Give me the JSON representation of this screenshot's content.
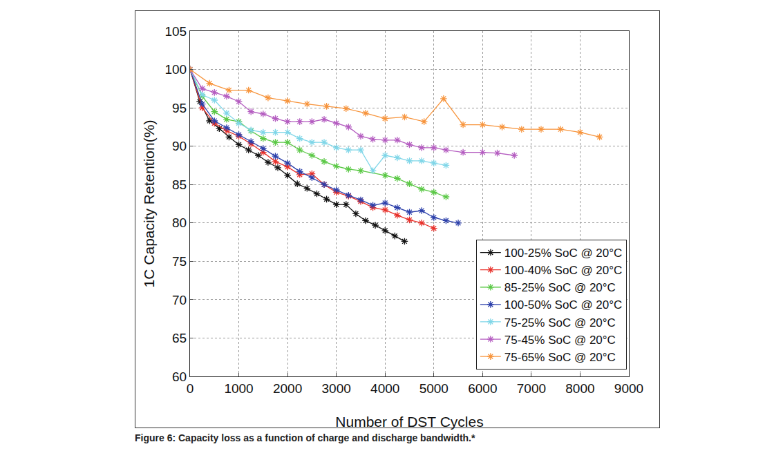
{
  "chart_data": {
    "type": "line",
    "caption": "Figure 6: Capacity loss as a function of charge and discharge bandwidth.*",
    "x_label": "Number of DST Cycles",
    "y_label": "1C Capacity Retention(%)",
    "xlim": [
      0,
      9000
    ],
    "xticks": [
      0,
      1000,
      2000,
      3000,
      4000,
      5000,
      6000,
      7000,
      8000,
      9000
    ],
    "ylim": [
      60,
      105
    ],
    "yticks": [
      60,
      65,
      70,
      75,
      80,
      85,
      90,
      95,
      100,
      105
    ],
    "grid": true,
    "legend": "lower right",
    "marker": "asterisk",
    "series": [
      {
        "name": "100-25% SoC @ 20°C",
        "color": "#111111",
        "x": [
          0,
          200,
          400,
          600,
          800,
          1000,
          1200,
          1400,
          1600,
          1800,
          2000,
          2200,
          2400,
          2600,
          2800,
          3000,
          3200,
          3400,
          3600,
          3800,
          4000,
          4200,
          4400
        ],
        "values": [
          100,
          95.8,
          93.3,
          92.3,
          91.2,
          90.2,
          89.5,
          88.8,
          87.9,
          87.2,
          86.2,
          85.1,
          84.5,
          83.8,
          83.1,
          82.4,
          82.4,
          81.2,
          80.3,
          79.7,
          79,
          78.3,
          77.6
        ]
      },
      {
        "name": "100-40% SoC @ 20°C",
        "color": "#e8302a",
        "x": [
          0,
          250,
          500,
          750,
          1000,
          1250,
          1500,
          1750,
          2000,
          2250,
          2500,
          2750,
          3000,
          3250,
          3500,
          3750,
          4000,
          4250,
          4500,
          4750,
          5000
        ],
        "values": [
          100,
          95,
          93,
          92,
          91.3,
          90.3,
          89.2,
          88,
          87.3,
          86.3,
          86.4,
          85,
          84,
          83.5,
          82.8,
          82,
          81.7,
          81,
          80.4,
          80,
          79.3
        ]
      },
      {
        "name": "85-25% SoC @ 20°C",
        "color": "#5ac845",
        "x": [
          0,
          250,
          500,
          750,
          1000,
          1250,
          1500,
          1750,
          2000,
          2250,
          2500,
          2750,
          3000,
          3250,
          3500,
          4000,
          4250,
          4500,
          4750,
          5000,
          5250
        ],
        "values": [
          100,
          96.5,
          94.5,
          93.5,
          93.2,
          92,
          91,
          90.5,
          90.5,
          89.5,
          88.8,
          88,
          87.4,
          87,
          86.8,
          86.2,
          85.8,
          85.1,
          84.4,
          84,
          83.4
        ]
      },
      {
        "name": "100-50% SoC @ 20°C",
        "color": "#2b3faa",
        "x": [
          0,
          250,
          500,
          750,
          1000,
          1250,
          1500,
          1750,
          2000,
          2250,
          2500,
          2750,
          3000,
          3250,
          3500,
          3750,
          4000,
          4250,
          4500,
          4750,
          5000,
          5250,
          5500
        ],
        "values": [
          100,
          95.5,
          93.3,
          92.4,
          91.5,
          90.6,
          89.7,
          88.7,
          87.8,
          86.7,
          85.9,
          85,
          84.3,
          83.6,
          83,
          82.3,
          82.6,
          82,
          81.4,
          81.6,
          80.7,
          80.3,
          80
        ]
      },
      {
        "name": "75-25% SoC @ 20°C",
        "color": "#7fd6e8",
        "x": [
          0,
          250,
          500,
          750,
          1000,
          1250,
          1500,
          1750,
          2000,
          2250,
          2500,
          2750,
          3000,
          3250,
          3500,
          3750,
          4000,
          4250,
          4500,
          4750,
          5000,
          5250
        ],
        "values": [
          100,
          96.7,
          96,
          94.3,
          93,
          92.1,
          91.8,
          91.8,
          91.8,
          91,
          90.5,
          90.5,
          89.8,
          89.5,
          89.5,
          86.8,
          88.8,
          88.5,
          88.1,
          88.1,
          87.8,
          87.5
        ]
      },
      {
        "name": "75-45% SoC @ 20°C",
        "color": "#b45cc0",
        "x": [
          0,
          250,
          500,
          750,
          1000,
          1250,
          1500,
          1750,
          2000,
          2250,
          2500,
          2750,
          3000,
          3250,
          3500,
          3750,
          4000,
          4250,
          4500,
          4750,
          5000,
          5250,
          5600,
          6000,
          6300,
          6650
        ],
        "values": [
          100,
          97.5,
          97,
          96.5,
          95.8,
          94.5,
          94.2,
          93.6,
          93.2,
          93.2,
          93.2,
          93.5,
          93,
          92.5,
          91.3,
          90.9,
          90.8,
          90.8,
          90.2,
          89.8,
          89.8,
          89.5,
          89.2,
          89.2,
          89.1,
          88.8
        ]
      },
      {
        "name": "75-65% SoC @ 20°C",
        "color": "#f7943c",
        "x": [
          0,
          400,
          800,
          1200,
          1600,
          2000,
          2400,
          2800,
          3200,
          3600,
          4000,
          4400,
          4800,
          5200,
          5600,
          6000,
          6400,
          6800,
          7200,
          7600,
          8000,
          8400
        ],
        "values": [
          100,
          98.2,
          97.3,
          97.3,
          96.3,
          95.9,
          95.5,
          95.2,
          94.9,
          94.3,
          93.6,
          93.8,
          93.2,
          96.2,
          92.8,
          92.8,
          92.5,
          92.2,
          92.2,
          92.2,
          91.8,
          91.2
        ]
      }
    ]
  }
}
